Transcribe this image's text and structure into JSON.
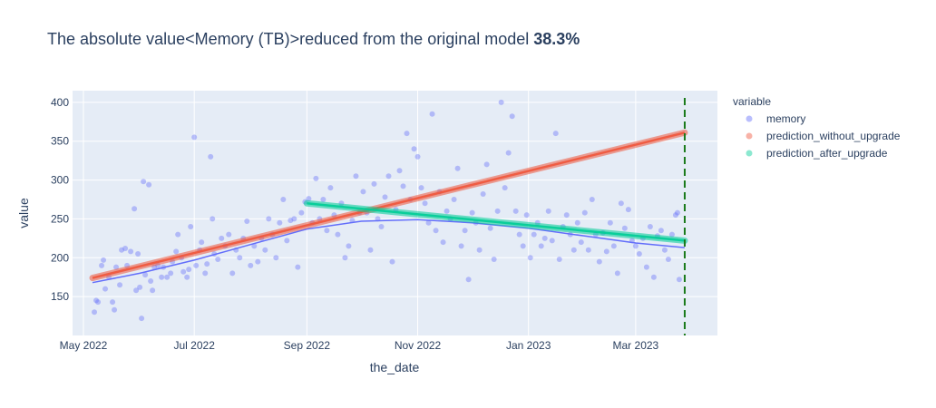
{
  "chart_data": {
    "type": "scatter",
    "title_prefix": "The absolute value<Memory (TB)>reduced from the original model ",
    "title_value": "38.3%",
    "xlabel": "the_date",
    "ylabel": "value",
    "x_range": [
      "2022-04-25",
      "2023-04-15"
    ],
    "y_range": [
      100,
      415
    ],
    "x_ticks": [
      {
        "date": "2022-05-01",
        "label": "May 2022"
      },
      {
        "date": "2022-07-01",
        "label": "Jul 2022"
      },
      {
        "date": "2022-09-01",
        "label": "Sep 2022"
      },
      {
        "date": "2022-11-01",
        "label": "Nov 2022"
      },
      {
        "date": "2023-01-01",
        "label": "Jan 2023"
      },
      {
        "date": "2023-03-01",
        "label": "Mar 2023"
      }
    ],
    "y_ticks": [
      150,
      200,
      250,
      300,
      350,
      400
    ],
    "grid": true,
    "legend": {
      "title": "variable",
      "placement": "top-right",
      "items": [
        {
          "name": "memory",
          "color": "#636efa"
        },
        {
          "name": "prediction_without_upgrade",
          "color": "#ef553b"
        },
        {
          "name": "prediction_after_upgrade",
          "color": "#00cc96"
        }
      ]
    },
    "series": [
      {
        "name": "memory",
        "mode": "markers",
        "color": "#636efa",
        "points": [
          [
            "2022-05-07",
            130
          ],
          [
            "2022-05-08",
            145
          ],
          [
            "2022-05-09",
            143
          ],
          [
            "2022-05-11",
            190
          ],
          [
            "2022-05-12",
            197
          ],
          [
            "2022-05-13",
            160
          ],
          [
            "2022-05-15",
            175
          ],
          [
            "2022-05-17",
            143
          ],
          [
            "2022-05-18",
            133
          ],
          [
            "2022-05-19",
            188
          ],
          [
            "2022-05-21",
            165
          ],
          [
            "2022-05-22",
            210
          ],
          [
            "2022-05-24",
            212
          ],
          [
            "2022-05-25",
            190
          ],
          [
            "2022-05-27",
            208
          ],
          [
            "2022-05-29",
            263
          ],
          [
            "2022-05-30",
            158
          ],
          [
            "2022-05-31",
            205
          ],
          [
            "2022-06-01",
            162
          ],
          [
            "2022-06-02",
            122
          ],
          [
            "2022-06-03",
            298
          ],
          [
            "2022-06-04",
            178
          ],
          [
            "2022-06-06",
            294
          ],
          [
            "2022-06-07",
            170
          ],
          [
            "2022-06-08",
            158
          ],
          [
            "2022-06-09",
            188
          ],
          [
            "2022-06-11",
            190
          ],
          [
            "2022-06-13",
            175
          ],
          [
            "2022-06-14",
            188
          ],
          [
            "2022-06-16",
            175
          ],
          [
            "2022-06-18",
            180
          ],
          [
            "2022-06-19",
            195
          ],
          [
            "2022-06-21",
            208
          ],
          [
            "2022-06-22",
            230
          ],
          [
            "2022-06-24",
            200
          ],
          [
            "2022-06-25",
            182
          ],
          [
            "2022-06-27",
            175
          ],
          [
            "2022-06-28",
            185
          ],
          [
            "2022-06-29",
            240
          ],
          [
            "2022-07-01",
            355
          ],
          [
            "2022-07-02",
            190
          ],
          [
            "2022-07-04",
            210
          ],
          [
            "2022-07-05",
            220
          ],
          [
            "2022-07-07",
            180
          ],
          [
            "2022-07-08",
            192
          ],
          [
            "2022-07-10",
            330
          ],
          [
            "2022-07-11",
            250
          ],
          [
            "2022-07-12",
            205
          ],
          [
            "2022-07-14",
            198
          ],
          [
            "2022-07-16",
            225
          ],
          [
            "2022-07-18",
            215
          ],
          [
            "2022-07-20",
            230
          ],
          [
            "2022-07-22",
            180
          ],
          [
            "2022-07-24",
            210
          ],
          [
            "2022-07-26",
            200
          ],
          [
            "2022-07-28",
            225
          ],
          [
            "2022-07-30",
            247
          ],
          [
            "2022-08-01",
            190
          ],
          [
            "2022-08-03",
            215
          ],
          [
            "2022-08-05",
            195
          ],
          [
            "2022-08-07",
            225
          ],
          [
            "2022-08-09",
            210
          ],
          [
            "2022-08-11",
            250
          ],
          [
            "2022-08-13",
            230
          ],
          [
            "2022-08-15",
            200
          ],
          [
            "2022-08-17",
            245
          ],
          [
            "2022-08-19",
            275
          ],
          [
            "2022-08-21",
            222
          ],
          [
            "2022-08-23",
            248
          ],
          [
            "2022-08-25",
            250
          ],
          [
            "2022-08-27",
            188
          ],
          [
            "2022-08-29",
            258
          ],
          [
            "2022-08-31",
            272
          ],
          [
            "2022-09-02",
            276
          ],
          [
            "2022-09-04",
            245
          ],
          [
            "2022-09-06",
            302
          ],
          [
            "2022-09-08",
            250
          ],
          [
            "2022-09-10",
            275
          ],
          [
            "2022-09-12",
            235
          ],
          [
            "2022-09-14",
            290
          ],
          [
            "2022-09-16",
            255
          ],
          [
            "2022-09-18",
            230
          ],
          [
            "2022-09-20",
            270
          ],
          [
            "2022-09-22",
            200
          ],
          [
            "2022-09-24",
            215
          ],
          [
            "2022-09-26",
            248
          ],
          [
            "2022-09-28",
            305
          ],
          [
            "2022-09-30",
            258
          ],
          [
            "2022-10-02",
            285
          ],
          [
            "2022-10-04",
            258
          ],
          [
            "2022-10-06",
            210
          ],
          [
            "2022-10-08",
            295
          ],
          [
            "2022-10-10",
            250
          ],
          [
            "2022-10-12",
            240
          ],
          [
            "2022-10-14",
            278
          ],
          [
            "2022-10-16",
            305
          ],
          [
            "2022-10-18",
            195
          ],
          [
            "2022-10-20",
            262
          ],
          [
            "2022-10-22",
            312
          ],
          [
            "2022-10-24",
            292
          ],
          [
            "2022-10-26",
            360
          ],
          [
            "2022-10-28",
            275
          ],
          [
            "2022-10-30",
            340
          ],
          [
            "2022-11-01",
            330
          ],
          [
            "2022-11-03",
            290
          ],
          [
            "2022-11-05",
            270
          ],
          [
            "2022-11-07",
            245
          ],
          [
            "2022-11-09",
            385
          ],
          [
            "2022-11-11",
            235
          ],
          [
            "2022-11-13",
            285
          ],
          [
            "2022-11-15",
            220
          ],
          [
            "2022-11-17",
            260
          ],
          [
            "2022-11-19",
            250
          ],
          [
            "2022-11-21",
            275
          ],
          [
            "2022-11-23",
            315
          ],
          [
            "2022-11-25",
            215
          ],
          [
            "2022-11-27",
            235
          ],
          [
            "2022-11-29",
            172
          ],
          [
            "2022-12-01",
            258
          ],
          [
            "2022-12-03",
            245
          ],
          [
            "2022-12-05",
            210
          ],
          [
            "2022-12-07",
            282
          ],
          [
            "2022-12-09",
            320
          ],
          [
            "2022-12-11",
            238
          ],
          [
            "2022-12-13",
            198
          ],
          [
            "2022-12-15",
            260
          ],
          [
            "2022-12-17",
            400
          ],
          [
            "2022-12-19",
            290
          ],
          [
            "2022-12-21",
            335
          ],
          [
            "2022-12-23",
            382
          ],
          [
            "2022-12-25",
            260
          ],
          [
            "2022-12-27",
            230
          ],
          [
            "2022-12-29",
            215
          ],
          [
            "2022-12-31",
            255
          ],
          [
            "2023-01-02",
            200
          ],
          [
            "2023-01-04",
            230
          ],
          [
            "2023-01-06",
            245
          ],
          [
            "2023-01-08",
            215
          ],
          [
            "2023-01-10",
            225
          ],
          [
            "2023-01-12",
            260
          ],
          [
            "2023-01-14",
            222
          ],
          [
            "2023-01-16",
            360
          ],
          [
            "2023-01-18",
            198
          ],
          [
            "2023-01-20",
            240
          ],
          [
            "2023-01-22",
            255
          ],
          [
            "2023-01-24",
            230
          ],
          [
            "2023-01-26",
            210
          ],
          [
            "2023-01-28",
            245
          ],
          [
            "2023-01-30",
            220
          ],
          [
            "2023-02-01",
            258
          ],
          [
            "2023-02-03",
            210
          ],
          [
            "2023-02-05",
            275
          ],
          [
            "2023-02-07",
            230
          ],
          [
            "2023-02-09",
            195
          ],
          [
            "2023-02-11",
            232
          ],
          [
            "2023-02-13",
            208
          ],
          [
            "2023-02-15",
            245
          ],
          [
            "2023-02-17",
            215
          ],
          [
            "2023-02-19",
            180
          ],
          [
            "2023-02-21",
            270
          ],
          [
            "2023-02-23",
            238
          ],
          [
            "2023-02-25",
            262
          ],
          [
            "2023-02-27",
            222
          ],
          [
            "2023-03-01",
            215
          ],
          [
            "2023-03-03",
            205
          ],
          [
            "2023-03-05",
            225
          ],
          [
            "2023-03-07",
            188
          ],
          [
            "2023-03-09",
            240
          ],
          [
            "2023-03-11",
            175
          ],
          [
            "2023-03-13",
            228
          ],
          [
            "2023-03-15",
            235
          ],
          [
            "2023-03-17",
            210
          ],
          [
            "2023-03-19",
            198
          ],
          [
            "2023-03-21",
            230
          ],
          [
            "2023-03-23",
            255
          ],
          [
            "2023-03-24",
            258
          ],
          [
            "2023-03-25",
            172
          ]
        ]
      },
      {
        "name": "prediction_without_upgrade",
        "mode": "line",
        "color": "#ef553b",
        "points": [
          [
            "2022-05-06",
            174
          ],
          [
            "2023-03-28",
            361
          ]
        ]
      },
      {
        "name": "prediction_after_upgrade",
        "mode": "line",
        "color": "#00cc96",
        "points": [
          [
            "2022-09-01",
            270
          ],
          [
            "2023-03-28",
            222
          ]
        ]
      },
      {
        "name": "trend",
        "mode": "thin-line",
        "color": "#636efa",
        "points": [
          [
            "2022-05-06",
            168
          ],
          [
            "2022-06-01",
            180
          ],
          [
            "2022-07-01",
            197
          ],
          [
            "2022-08-01",
            217
          ],
          [
            "2022-09-01",
            237
          ],
          [
            "2022-10-01",
            247
          ],
          [
            "2022-11-01",
            249
          ],
          [
            "2022-12-01",
            245
          ],
          [
            "2023-01-01",
            238
          ],
          [
            "2023-02-01",
            228
          ],
          [
            "2023-03-01",
            219
          ],
          [
            "2023-03-28",
            213
          ]
        ]
      }
    ],
    "vline": {
      "date": "2023-03-28",
      "color": "#1a7a1a",
      "style": "dashed"
    }
  }
}
